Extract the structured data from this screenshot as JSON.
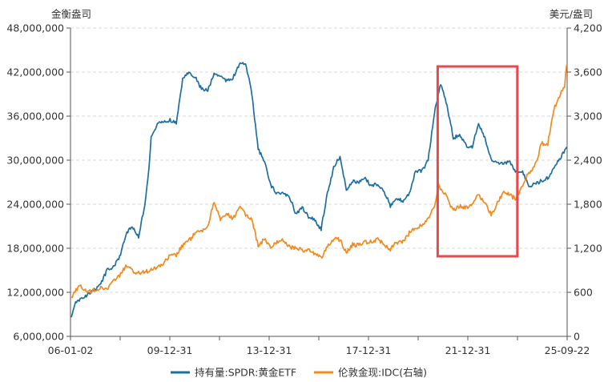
{
  "chart_data": {
    "type": "line",
    "title": "",
    "left_axis_unit": "金衡盎司",
    "right_axis_unit": "美元/盎司",
    "left_ylim": [
      6000000,
      48000000
    ],
    "right_ylim": [
      0,
      4200
    ],
    "left_ticks": [
      "48,000,000",
      "42,000,000",
      "36,000,000",
      "30,000,000",
      "24,000,000",
      "18,000,000",
      "12,000,000",
      "6,000,000"
    ],
    "right_ticks": [
      "4,200",
      "3,600",
      "3,000",
      "2,400",
      "1,800",
      "1,200",
      "600",
      "0"
    ],
    "x_ticks": [
      "06-01-02",
      "09-12-31",
      "13-12-31",
      "17-12-31",
      "21-12-31",
      "25-09-22"
    ],
    "x_start": "2006-01-02",
    "x_end": "2025-09-22",
    "grid": true,
    "legend_position": "bottom",
    "highlight": {
      "from": "2020-08-01",
      "to": "2023-09-30",
      "color": "#e8474c"
    },
    "series": [
      {
        "name": "持有量:SPDR:黄金ETF",
        "axis": "left",
        "color": "#1f6f9e",
        "points": [
          [
            "2006-01",
            8600000
          ],
          [
            "2006-03",
            10500000
          ],
          [
            "2006-06",
            11200000
          ],
          [
            "2006-09",
            11700000
          ],
          [
            "2006-12",
            12300000
          ],
          [
            "2007-03",
            13200000
          ],
          [
            "2007-06",
            15000000
          ],
          [
            "2007-09",
            15500000
          ],
          [
            "2007-12",
            16800000
          ],
          [
            "2008-03",
            20000000
          ],
          [
            "2008-06",
            21000000
          ],
          [
            "2008-09",
            19500000
          ],
          [
            "2008-12",
            24000000
          ],
          [
            "2009-02",
            29000000
          ],
          [
            "2009-03",
            33000000
          ],
          [
            "2009-06",
            35000000
          ],
          [
            "2009-09",
            35200000
          ],
          [
            "2009-12",
            35500000
          ],
          [
            "2010-03",
            35000000
          ],
          [
            "2010-06",
            41000000
          ],
          [
            "2010-09",
            42100000
          ],
          [
            "2010-12",
            41300000
          ],
          [
            "2011-03",
            39700000
          ],
          [
            "2011-06",
            39500000
          ],
          [
            "2011-09",
            41800000
          ],
          [
            "2011-12",
            41500000
          ],
          [
            "2012-03",
            40800000
          ],
          [
            "2012-06",
            41200000
          ],
          [
            "2012-09",
            43000000
          ],
          [
            "2012-12",
            43200000
          ],
          [
            "2013-03",
            39000000
          ],
          [
            "2013-06",
            31500000
          ],
          [
            "2013-09",
            29800000
          ],
          [
            "2013-12",
            26500000
          ],
          [
            "2014-03",
            25500000
          ],
          [
            "2014-06",
            25400000
          ],
          [
            "2014-09",
            25000000
          ],
          [
            "2014-12",
            22700000
          ],
          [
            "2015-03",
            23500000
          ],
          [
            "2015-06",
            22300000
          ],
          [
            "2015-09",
            21800000
          ],
          [
            "2015-12",
            20600000
          ],
          [
            "2016-03",
            25500000
          ],
          [
            "2016-06",
            29000000
          ],
          [
            "2016-09",
            30500000
          ],
          [
            "2016-12",
            26000000
          ],
          [
            "2017-03",
            27100000
          ],
          [
            "2017-06",
            27000000
          ],
          [
            "2017-09",
            27500000
          ],
          [
            "2017-12",
            26500000
          ],
          [
            "2018-03",
            26800000
          ],
          [
            "2018-06",
            25800000
          ],
          [
            "2018-09",
            23800000
          ],
          [
            "2018-12",
            24700000
          ],
          [
            "2019-03",
            24500000
          ],
          [
            "2019-06",
            25500000
          ],
          [
            "2019-09",
            28500000
          ],
          [
            "2019-12",
            28500000
          ],
          [
            "2020-03",
            30000000
          ],
          [
            "2020-06",
            36500000
          ],
          [
            "2020-09",
            40500000
          ],
          [
            "2020-12",
            37500000
          ],
          [
            "2021-03",
            33000000
          ],
          [
            "2021-06",
            33500000
          ],
          [
            "2021-09",
            32000000
          ],
          [
            "2021-12",
            31800000
          ],
          [
            "2022-03",
            35000000
          ],
          [
            "2022-06",
            33000000
          ],
          [
            "2022-09",
            30000000
          ],
          [
            "2022-12",
            29500000
          ],
          [
            "2023-03",
            29500000
          ],
          [
            "2023-06",
            29800000
          ],
          [
            "2023-09",
            28300000
          ],
          [
            "2023-12",
            28500000
          ],
          [
            "2024-03",
            26500000
          ],
          [
            "2024-06",
            26700000
          ],
          [
            "2024-09",
            27200000
          ],
          [
            "2024-12",
            27600000
          ],
          [
            "2025-03",
            29000000
          ],
          [
            "2025-06",
            30300000
          ],
          [
            "2025-09",
            31800000
          ]
        ]
      },
      {
        "name": "伦敦金现:IDC(右轴)",
        "axis": "right",
        "color": "#f28a1e",
        "points": [
          [
            "2006-01",
            540
          ],
          [
            "2006-05",
            690
          ],
          [
            "2006-09",
            600
          ],
          [
            "2006-12",
            630
          ],
          [
            "2007-03",
            660
          ],
          [
            "2007-06",
            650
          ],
          [
            "2007-09",
            740
          ],
          [
            "2007-12",
            830
          ],
          [
            "2008-03",
            960
          ],
          [
            "2008-06",
            900
          ],
          [
            "2008-09",
            860
          ],
          [
            "2008-12",
            870
          ],
          [
            "2009-03",
            920
          ],
          [
            "2009-06",
            940
          ],
          [
            "2009-09",
            1000
          ],
          [
            "2009-12",
            1100
          ],
          [
            "2010-03",
            1110
          ],
          [
            "2010-06",
            1240
          ],
          [
            "2010-09",
            1300
          ],
          [
            "2010-12",
            1410
          ],
          [
            "2011-03",
            1430
          ],
          [
            "2011-06",
            1500
          ],
          [
            "2011-09",
            1850
          ],
          [
            "2011-12",
            1580
          ],
          [
            "2012-03",
            1670
          ],
          [
            "2012-06",
            1600
          ],
          [
            "2012-09",
            1770
          ],
          [
            "2012-12",
            1660
          ],
          [
            "2013-03",
            1600
          ],
          [
            "2013-06",
            1230
          ],
          [
            "2013-09",
            1330
          ],
          [
            "2013-12",
            1200
          ],
          [
            "2014-03",
            1290
          ],
          [
            "2014-06",
            1320
          ],
          [
            "2014-09",
            1210
          ],
          [
            "2014-12",
            1200
          ],
          [
            "2015-03",
            1180
          ],
          [
            "2015-06",
            1170
          ],
          [
            "2015-09",
            1120
          ],
          [
            "2015-12",
            1060
          ],
          [
            "2016-03",
            1230
          ],
          [
            "2016-06",
            1320
          ],
          [
            "2016-09",
            1320
          ],
          [
            "2016-12",
            1150
          ],
          [
            "2017-03",
            1250
          ],
          [
            "2017-06",
            1240
          ],
          [
            "2017-09",
            1280
          ],
          [
            "2017-12",
            1300
          ],
          [
            "2018-03",
            1320
          ],
          [
            "2018-06",
            1250
          ],
          [
            "2018-09",
            1190
          ],
          [
            "2018-12",
            1280
          ],
          [
            "2019-03",
            1290
          ],
          [
            "2019-06",
            1410
          ],
          [
            "2019-09",
            1480
          ],
          [
            "2019-12",
            1520
          ],
          [
            "2020-03",
            1600
          ],
          [
            "2020-06",
            1770
          ],
          [
            "2020-08",
            2060
          ],
          [
            "2020-12",
            1890
          ],
          [
            "2021-03",
            1710
          ],
          [
            "2021-06",
            1770
          ],
          [
            "2021-09",
            1750
          ],
          [
            "2021-12",
            1820
          ],
          [
            "2022-03",
            1940
          ],
          [
            "2022-06",
            1810
          ],
          [
            "2022-09",
            1660
          ],
          [
            "2022-12",
            1810
          ],
          [
            "2023-03",
            1970
          ],
          [
            "2023-06",
            1920
          ],
          [
            "2023-09",
            1870
          ],
          [
            "2023-12",
            2060
          ],
          [
            "2024-03",
            2230
          ],
          [
            "2024-06",
            2330
          ],
          [
            "2024-09",
            2630
          ],
          [
            "2024-12",
            2620
          ],
          [
            "2025-03",
            3100
          ],
          [
            "2025-06",
            3300
          ],
          [
            "2025-08",
            3400
          ],
          [
            "2025-09",
            3700
          ]
        ]
      }
    ]
  }
}
